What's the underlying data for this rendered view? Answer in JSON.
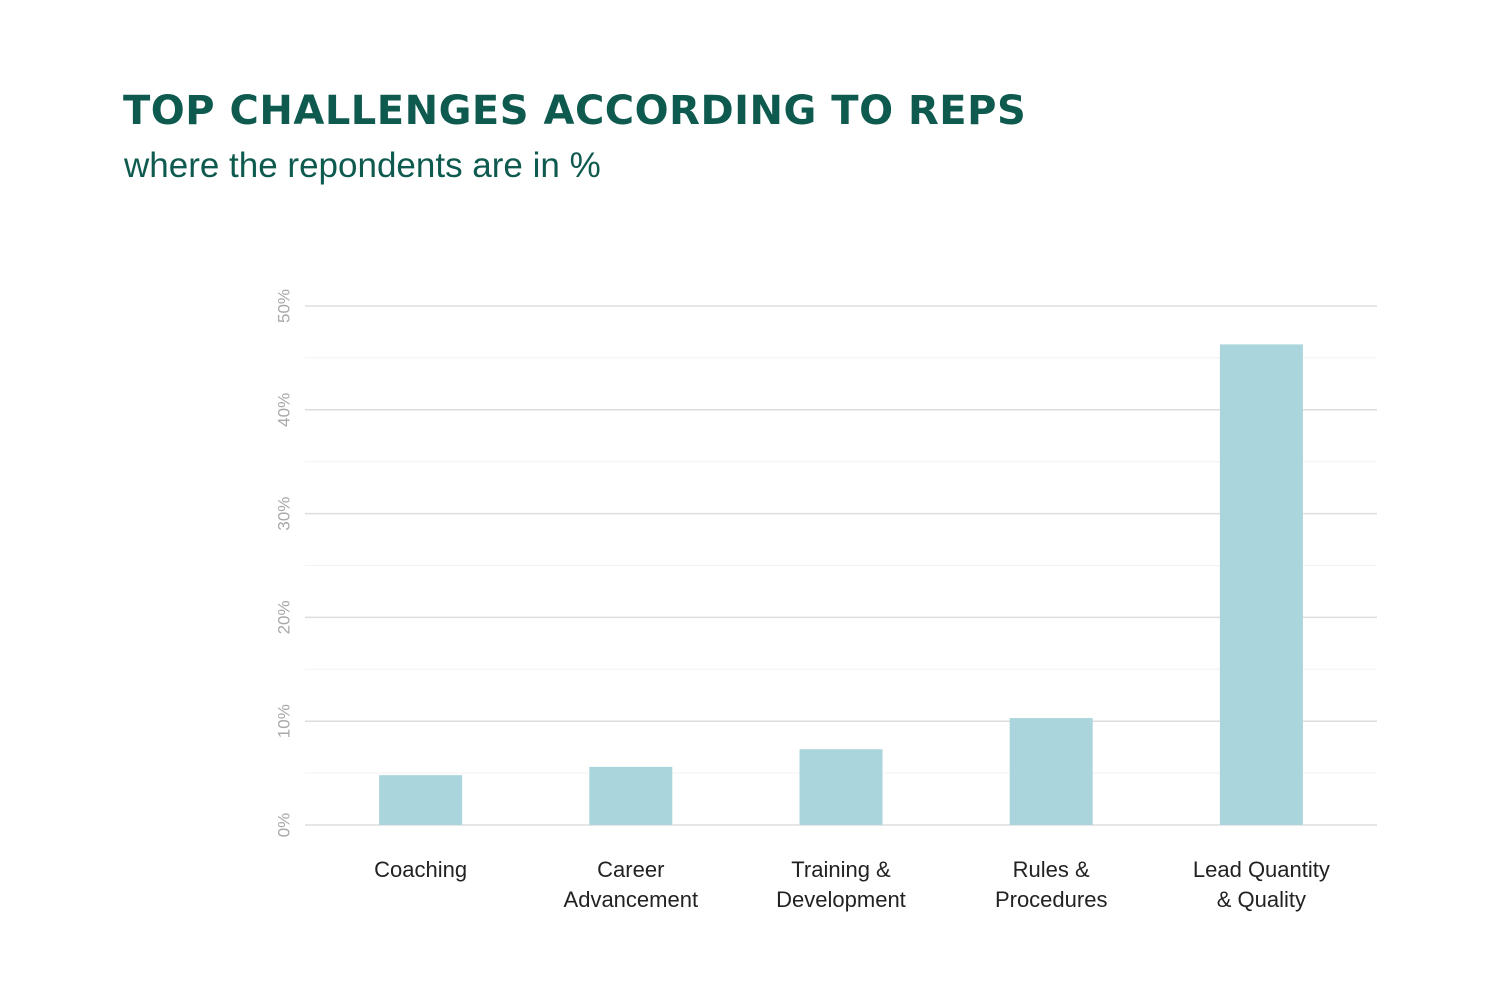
{
  "header": {
    "title": "TOP CHALLENGES ACCORDING TO REPS",
    "subtitle": "where the repondents are in %"
  },
  "colors": {
    "title": "#0f5a4f",
    "bar": "#aad5dc",
    "grid": "#dddddd",
    "minor_grid": "#f2f2f2",
    "tick_label": "#a8a8a8",
    "category_label": "#222222"
  },
  "chart_data": {
    "type": "bar",
    "title": "TOP CHALLENGES ACCORDING TO REPS",
    "subtitle": "where the repondents are in %",
    "xlabel": "",
    "ylabel": "",
    "categories": [
      [
        "Coaching"
      ],
      [
        "Career",
        "Advancement"
      ],
      [
        "Training &",
        "Development"
      ],
      [
        "Rules &",
        "Procedures"
      ],
      [
        "Lead Quantity",
        "& Quality"
      ]
    ],
    "values": [
      4.8,
      5.6,
      7.3,
      10.3,
      46.3
    ],
    "ylim": [
      0,
      50
    ],
    "yticks": [
      {
        "value": 0,
        "label": "0%"
      },
      {
        "value": 10,
        "label": "10%"
      },
      {
        "value": 20,
        "label": "20%"
      },
      {
        "value": 30,
        "label": "30%"
      },
      {
        "value": 40,
        "label": "40%"
      },
      {
        "value": 50,
        "label": "50%"
      }
    ],
    "grid": true,
    "legend": "none"
  }
}
